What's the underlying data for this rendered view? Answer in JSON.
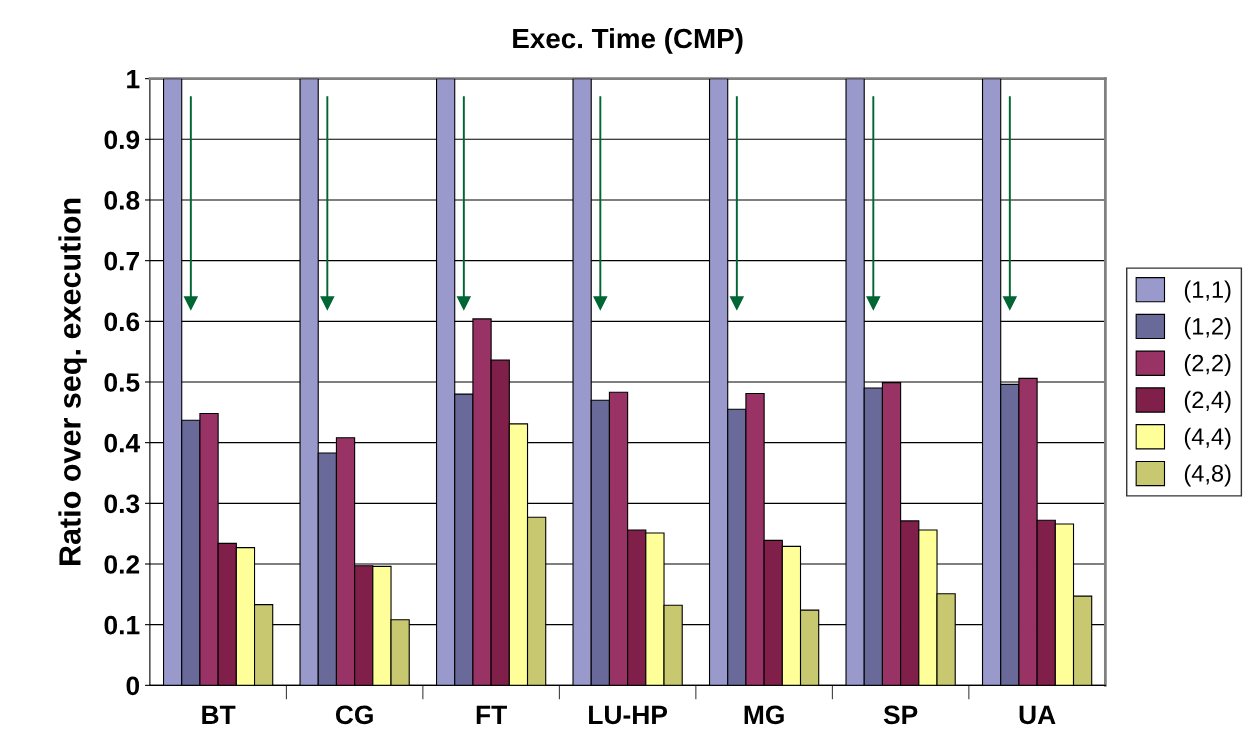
{
  "chart_data": {
    "type": "bar",
    "title": "Exec. Time (CMP)",
    "ylabel": "Ratio over seq. execution",
    "categories": [
      "BT",
      "CG",
      "FT",
      "LU-HP",
      "MG",
      "SP",
      "UA"
    ],
    "series": [
      {
        "name": "(1,1)",
        "color": "#9999cc",
        "values": [
          1,
          1,
          1,
          1,
          1,
          1,
          1
        ]
      },
      {
        "name": "(1,2)",
        "color": "#6a6a9a",
        "values": [
          0.437,
          0.383,
          0.48,
          0.47,
          0.455,
          0.49,
          0.496
        ]
      },
      {
        "name": "(2,2)",
        "color": "#993366",
        "values": [
          0.448,
          0.408,
          0.604,
          0.483,
          0.481,
          0.499,
          0.506
        ]
      },
      {
        "name": "(2,4)",
        "color": "#80204a",
        "values": [
          0.234,
          0.197,
          0.536,
          0.256,
          0.239,
          0.271,
          0.272
        ]
      },
      {
        "name": "(4,4)",
        "color": "#ffff99",
        "values": [
          0.227,
          0.196,
          0.431,
          0.251,
          0.229,
          0.256,
          0.266
        ]
      },
      {
        "name": "(4,8)",
        "color": "#c8c870",
        "values": [
          0.133,
          0.108,
          0.277,
          0.132,
          0.124,
          0.151,
          0.147
        ]
      }
    ],
    "ylim": [
      0,
      1
    ],
    "yticks": [
      0,
      0.1,
      0.2,
      0.3,
      0.4,
      0.5,
      0.6,
      0.7,
      0.8,
      0.9,
      1
    ],
    "grid": "y",
    "legend": "right"
  }
}
